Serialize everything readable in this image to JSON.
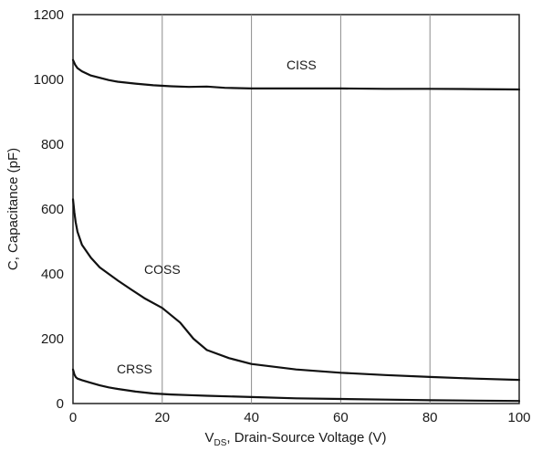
{
  "chart_data": {
    "type": "line",
    "xlabel_sub": "DS",
    "xlabel_main": "V",
    "xlabel_rest": ",  Drain-Source Voltage (V)",
    "ylabel": "C,  Capacitance (pF)",
    "xlim": [
      0,
      100
    ],
    "ylim": [
      0,
      1200
    ],
    "x_ticks": [
      "0",
      "20",
      "40",
      "60",
      "80",
      "100"
    ],
    "y_ticks": [
      "0",
      "200",
      "400",
      "600",
      "800",
      "1000",
      "1200"
    ],
    "grid": true,
    "series": [
      {
        "name": "CISS",
        "x": [
          0,
          0.5,
          1,
          2,
          4,
          6,
          8,
          10,
          14,
          18,
          22,
          26,
          30,
          34,
          40,
          50,
          60,
          70,
          80,
          90,
          100
        ],
        "y": [
          1060,
          1045,
          1035,
          1025,
          1012,
          1005,
          998,
          993,
          987,
          982,
          979,
          977,
          978,
          974,
          972,
          972,
          972,
          971,
          971,
          970,
          969
        ]
      },
      {
        "name": "COSS",
        "x": [
          0,
          0.3,
          0.6,
          1,
          2,
          4,
          6,
          8,
          10,
          13,
          16,
          20,
          24,
          27,
          30,
          35,
          40,
          50,
          60,
          70,
          80,
          90,
          100
        ],
        "y": [
          630,
          590,
          560,
          530,
          490,
          450,
          420,
          400,
          380,
          352,
          325,
          295,
          250,
          200,
          165,
          140,
          122,
          105,
          95,
          88,
          82,
          77,
          73
        ]
      },
      {
        "name": "CRSS",
        "x": [
          0,
          0.3,
          0.6,
          1,
          2,
          4,
          6,
          8,
          10,
          14,
          18,
          22,
          26,
          30,
          40,
          50,
          60,
          70,
          80,
          90,
          100
        ],
        "y": [
          105,
          90,
          82,
          77,
          72,
          64,
          56,
          50,
          45,
          37,
          31,
          28,
          26,
          24,
          20,
          16,
          14,
          12,
          10,
          9,
          8
        ]
      }
    ]
  }
}
